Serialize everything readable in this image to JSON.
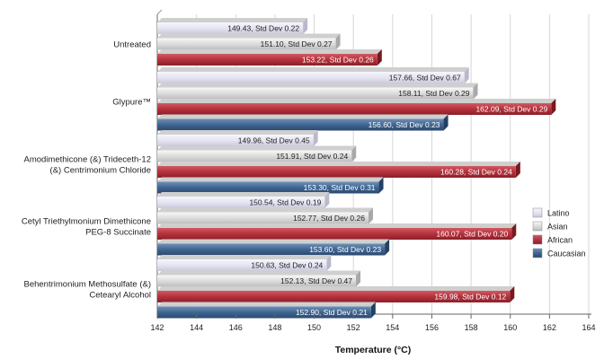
{
  "chart_data": {
    "type": "bar",
    "orientation": "horizontal",
    "categories": [
      "Untreated",
      "Glypure™",
      "Amodimethicone (&) Trideceth-12 (&) Centrimonium Chloride",
      "Cetyl Triethylmonium Dimethicone PEG-8 Succinate",
      "Behentrimonium Methosulfate (&) Cetearyl Alcohol"
    ],
    "category_lines": [
      [
        "Untreated"
      ],
      [
        "Glypure™"
      ],
      [
        "Amodimethicone (&) Trideceth-12",
        "(&) Centrimonium Chloride"
      ],
      [
        "Cetyl Triethylmonium Dimethicone",
        "PEG-8 Succinate"
      ],
      [
        "Behentrimonium Methosulfate (&)",
        "Cetearyl Alcohol"
      ]
    ],
    "series": [
      {
        "name": "Latino",
        "color": "#e4e4f2",
        "values": [
          149.43,
          157.66,
          149.96,
          150.54,
          150.63
        ],
        "labels": [
          "149.43, Std Dev 0.22",
          "157.66, Std Dev 0.67",
          "149.96, Std Dev 0.45",
          "150.54, Std Dev 0.19",
          "150.63, Std Dev 0.24"
        ]
      },
      {
        "name": "Asian",
        "color": "#dcdcdc",
        "values": [
          151.1,
          158.11,
          151.91,
          152.77,
          152.13
        ],
        "labels": [
          "151.10, Std Dev 0.27",
          "158.11, Std Dev 0.29",
          "151.91, Std Dev 0.24",
          "152.77, Std Dev 0.26",
          "152.13, Std Dev 0.47"
        ]
      },
      {
        "name": "African",
        "color": "#b5323c",
        "values": [
          153.22,
          162.09,
          160.28,
          160.07,
          159.98
        ],
        "labels": [
          "153.22, Std Dev 0.26",
          "162.09, Std Dev 0.29",
          "160.28, Std Dev 0.24",
          "160.07, Std Dev 0.20",
          "159.98, Std Dev 0.12"
        ]
      },
      {
        "name": "Caucasian",
        "color": "#3f6591",
        "values": [
          null,
          156.6,
          153.3,
          153.6,
          152.9
        ],
        "labels": [
          null,
          "156.60, Std Dev 0.23",
          "153.30, Std Dev 0.31",
          "153.60, Std Dev 0.23",
          "152.90, Std Dev 0.21"
        ]
      }
    ],
    "xlabel": "Temperature (°C)",
    "xlim": [
      142,
      164
    ],
    "xticks": [
      142,
      144,
      146,
      148,
      150,
      152,
      154,
      156,
      158,
      160,
      162,
      164
    ],
    "grid": true,
    "legend_position": "right"
  }
}
